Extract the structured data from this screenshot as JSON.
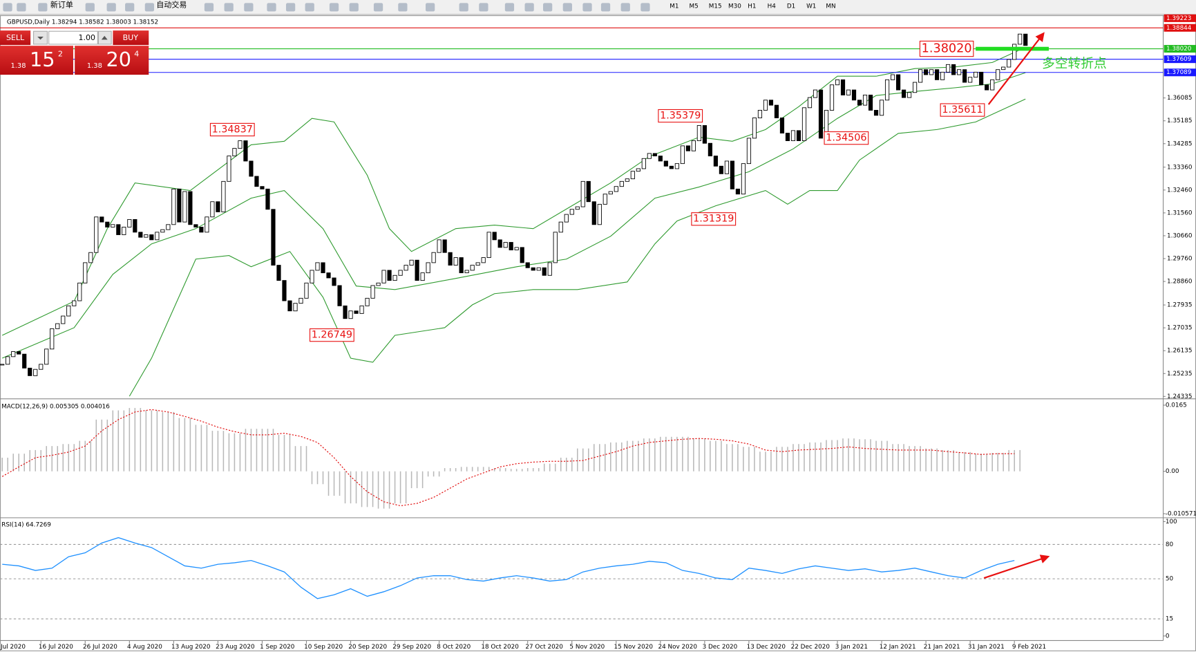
{
  "toolbar": {
    "new_order": "新订单",
    "auto_trading": "自动交易",
    "timeframes": [
      "M1",
      "M5",
      "M15",
      "M30",
      "H1",
      "H4",
      "D1",
      "W1",
      "MN"
    ]
  },
  "one_click": {
    "sell": "SELL",
    "buy": "BUY",
    "lot": "1.00",
    "sell_price": {
      "prefix": "1.38",
      "big": "15",
      "sup": "2"
    },
    "buy_price": {
      "prefix": "1.38",
      "big": "20",
      "sup": "4"
    }
  },
  "chart_data": [
    {
      "type": "candlestick",
      "title": "GBPUSD,Daily 1.38294 1.38582 1.38003 1.38152",
      "values": [
        1.256,
        1.259,
        1.261,
        1.26,
        1.2545,
        1.2515,
        1.254,
        1.256,
        1.262,
        1.27,
        1.272,
        1.275,
        1.279,
        1.281,
        1.288,
        1.296,
        1.3,
        1.314,
        1.312,
        1.31,
        1.311,
        1.307,
        1.31,
        1.313,
        1.308,
        1.306,
        1.307,
        1.305,
        1.308,
        1.309,
        1.311,
        1.325,
        1.312,
        1.324,
        1.311,
        1.31,
        1.308,
        1.314,
        1.32,
        1.316,
        1.328,
        1.338,
        1.341,
        1.344,
        1.336,
        1.33,
        1.326,
        1.325,
        1.317,
        1.295,
        1.289,
        1.281,
        1.277,
        1.28,
        1.282,
        1.288,
        1.293,
        1.296,
        1.292,
        1.29,
        1.287,
        1.279,
        1.274,
        1.277,
        1.276,
        1.279,
        1.282,
        1.287,
        1.288,
        1.293,
        1.289,
        1.291,
        1.293,
        1.295,
        1.297,
        1.289,
        1.292,
        1.296,
        1.3,
        1.305,
        1.3,
        1.295,
        1.298,
        1.292,
        1.293,
        1.295,
        1.296,
        1.298,
        1.308,
        1.305,
        1.302,
        1.304,
        1.301,
        1.302,
        1.296,
        1.294,
        1.293,
        1.294,
        1.291,
        1.296,
        1.308,
        1.312,
        1.315,
        1.317,
        1.318,
        1.328,
        1.32,
        1.311,
        1.319,
        1.323,
        1.324,
        1.326,
        1.328,
        1.329,
        1.332,
        1.333,
        1.337,
        1.339,
        1.338,
        1.336,
        1.334,
        1.333,
        1.335,
        1.342,
        1.34,
        1.344,
        1.35,
        1.343,
        1.338,
        1.334,
        1.331,
        1.336,
        1.325,
        1.323,
        1.335,
        1.345,
        1.353,
        1.356,
        1.36,
        1.358,
        1.353,
        1.347,
        1.344,
        1.348,
        1.344,
        1.357,
        1.361,
        1.364,
        1.345,
        1.356,
        1.366,
        1.368,
        1.362,
        1.364,
        1.36,
        1.358,
        1.362,
        1.356,
        1.354,
        1.36,
        1.368,
        1.37,
        1.364,
        1.361,
        1.363,
        1.367,
        1.372,
        1.37,
        1.372,
        1.368,
        1.371,
        1.374,
        1.37,
        1.372,
        1.367,
        1.369,
        1.371,
        1.366,
        1.364,
        1.368,
        1.372,
        1.373,
        1.376,
        1.382,
        1.386,
        1.3815
      ],
      "xlim": [
        -0.4,
        209.9
      ],
      "xticks": [
        {
          "value": -1,
          "label": "Jul 2020"
        },
        {
          "value": 7,
          "label": "16 Jul 2020"
        },
        {
          "value": 15,
          "label": "26 Jul 2020"
        },
        {
          "value": 23,
          "label": "4 Aug 2020"
        },
        {
          "value": 31,
          "label": "13 Aug 2020"
        },
        {
          "value": 39,
          "label": "23 Aug 2020"
        },
        {
          "value": 47,
          "label": "1 Sep 2020"
        },
        {
          "value": 55,
          "label": "10 Sep 2020"
        },
        {
          "value": 63,
          "label": "20 Sep 2020"
        },
        {
          "value": 71,
          "label": "29 Sep 2020"
        },
        {
          "value": 79,
          "label": "8 Oct 2020"
        },
        {
          "value": 87,
          "label": "18 Oct 2020"
        },
        {
          "value": 95,
          "label": "27 Oct 2020"
        },
        {
          "value": 103,
          "label": "5 Nov 2020"
        },
        {
          "value": 111,
          "label": "15 Nov 2020"
        },
        {
          "value": 119,
          "label": "24 Nov 2020"
        },
        {
          "value": 127,
          "label": "3 Dec 2020"
        },
        {
          "value": 135,
          "label": "13 Dec 2020"
        },
        {
          "value": 143,
          "label": "22 Dec 2020"
        },
        {
          "value": 151,
          "label": "3 Jan 2021"
        },
        {
          "value": 159,
          "label": "12 Jan 2021"
        },
        {
          "value": 167,
          "label": "21 Jan 2021"
        },
        {
          "value": 175,
          "label": "31 Jan 2021"
        },
        {
          "value": 183,
          "label": "9 Feb 2021"
        }
      ],
      "ylim": [
        1.2427,
        1.3928
      ],
      "yticks": [
        1.36085,
        1.35185,
        1.34285,
        {
          "value": 1.3336,
          "label": "1.33360"
        },
        {
          "value": 1.3246,
          "label": "1.32460"
        },
        {
          "value": 1.3156,
          "label": "1.31560"
        },
        {
          "value": 1.3066,
          "label": "1.30660"
        },
        {
          "value": 1.2976,
          "label": "1.29760"
        },
        {
          "value": 1.2886,
          "label": "1.28860"
        },
        1.27935,
        1.27035,
        1.26135,
        1.25235,
        1.24335
      ],
      "series": [
        {
          "color": "#2e9a2e",
          "x": [
            0,
            13,
            19,
            24,
            34,
            45,
            51,
            56,
            60,
            66,
            70,
            74,
            82,
            89,
            96,
            103,
            110,
            117,
            126,
            132,
            138,
            144,
            151,
            158,
            165,
            172,
            179,
            185
          ],
          "values": [
            1.2674,
            1.2808,
            1.3094,
            1.3274,
            1.3244,
            1.3424,
            1.3438,
            1.3528,
            1.3514,
            1.3304,
            1.3094,
            1.3004,
            1.3094,
            1.3108,
            1.3094,
            1.3184,
            1.3274,
            1.3378,
            1.3454,
            1.3438,
            1.3484,
            1.3574,
            1.3694,
            1.3694,
            1.3724,
            1.373,
            1.3748,
            1.3808
          ]
        },
        {
          "color": "#2e9a2e",
          "x": [
            0,
            13,
            20,
            27,
            35,
            45,
            51,
            58,
            64,
            71,
            82,
            93,
            102,
            110,
            118,
            126,
            135,
            143,
            151,
            158,
            165,
            172,
            179,
            185
          ],
          "values": [
            1.2584,
            1.2704,
            1.2914,
            1.3034,
            1.3094,
            1.3214,
            1.3244,
            1.3094,
            1.2868,
            1.2854,
            1.2898,
            1.2944,
            1.2974,
            1.3064,
            1.3214,
            1.3258,
            1.3318,
            1.3408,
            1.3528,
            1.3618,
            1.3634,
            1.3648,
            1.3664,
            1.3708
          ]
        },
        {
          "color": "#2e9a2e",
          "x": [
            23,
            27,
            35,
            41,
            45,
            52,
            58,
            63,
            67,
            71,
            80,
            85,
            89,
            96,
            104,
            113,
            118,
            122,
            129,
            138,
            142,
            146,
            151,
            155,
            162,
            169,
            176,
            185
          ],
          "values": [
            1.2434,
            1.2584,
            1.2974,
            1.2988,
            1.2944,
            1.3004,
            1.2824,
            1.2584,
            1.2568,
            1.2674,
            1.2704,
            1.2794,
            1.2838,
            1.2854,
            1.2854,
            1.2884,
            1.3034,
            1.3124,
            1.3184,
            1.3244,
            1.319,
            1.3244,
            1.3244,
            1.3364,
            1.3469,
            1.3484,
            1.3514,
            1.3604
          ]
        }
      ],
      "levels": [
        {
          "value": 1.39223,
          "color": "#e01010",
          "line": false
        },
        {
          "value": 1.38844,
          "color": "#e01010",
          "line": true
        },
        {
          "value": 1.3802,
          "label": "1.38020",
          "color": "#22bb22",
          "line": true
        },
        {
          "value": 1.37609,
          "color": "#1a1aff",
          "line": true
        },
        {
          "value": 1.37089,
          "color": "#1a1aff",
          "line": true
        }
      ],
      "annotations": [
        {
          "x": 46,
          "value": 1.34837
        },
        {
          "x": 64,
          "value": 1.26749
        },
        {
          "x": 127,
          "value": 1.35379
        },
        {
          "x": 133,
          "value": 1.31319
        },
        {
          "x": 157,
          "value": 1.34506
        },
        {
          "x": 178,
          "value": 1.35611
        },
        {
          "x": 176,
          "value": 1.3802,
          "label": "1.38020",
          "highlight": true
        }
      ],
      "note": {
        "text": "多空转折点",
        "color": "#33cc33"
      }
    },
    {
      "type": "macd",
      "title": "MACD(12,26,9) 0.005305 0.004016",
      "x": [
        0,
        3,
        6,
        9,
        12,
        15,
        18,
        21,
        24,
        27,
        30,
        33,
        36,
        39,
        42,
        45,
        48,
        51,
        54,
        57,
        60,
        63,
        66,
        69,
        72,
        75,
        78,
        81,
        84,
        87,
        90,
        93,
        96,
        99,
        102,
        105,
        108,
        111,
        114,
        117,
        120,
        123,
        126,
        129,
        132,
        135,
        138,
        141,
        144,
        147,
        150,
        153,
        156,
        159,
        162,
        165,
        168,
        171,
        174,
        177,
        180,
        183
      ],
      "histogram": {
        "color": "#b8b8b8",
        "values": [
          0.0034,
          0.0044,
          0.0053,
          0.0063,
          0.0068,
          0.0076,
          0.0129,
          0.0152,
          0.0158,
          0.0152,
          0.0148,
          0.0133,
          0.0116,
          0.0101,
          0.0095,
          0.0106,
          0.0106,
          0.0091,
          0.0063,
          -0.0032,
          -0.0061,
          -0.008,
          -0.0089,
          -0.0093,
          -0.008,
          -0.0042,
          -0.0013,
          0.0008,
          0.0011,
          0.0011,
          0.0008,
          0.0006,
          0.0008,
          0.0019,
          0.0034,
          0.0057,
          0.0068,
          0.0072,
          0.0076,
          0.0082,
          0.0086,
          0.0086,
          0.0082,
          0.0076,
          0.0068,
          0.0061,
          0.0049,
          0.0061,
          0.0068,
          0.0072,
          0.0078,
          0.0082,
          0.008,
          0.0076,
          0.0068,
          0.0063,
          0.0057,
          0.0053,
          0.0048,
          0.0044,
          0.0046,
          0.0053
        ]
      },
      "signal": {
        "color": "#e00000",
        "values": [
          -0.0013,
          0.0011,
          0.0034,
          0.004,
          0.0048,
          0.0063,
          0.0101,
          0.0129,
          0.0148,
          0.0154,
          0.0148,
          0.0137,
          0.0125,
          0.011,
          0.0099,
          0.0091,
          0.0091,
          0.0095,
          0.0087,
          0.0072,
          0.0034,
          -0.0013,
          -0.0051,
          -0.0076,
          -0.0086,
          -0.008,
          -0.0065,
          -0.0042,
          -0.0019,
          -0.0004,
          0.0011,
          0.0019,
          0.0023,
          0.0025,
          0.0025,
          0.0027,
          0.0038,
          0.0049,
          0.0063,
          0.0072,
          0.0076,
          0.008,
          0.0082,
          0.008,
          0.0076,
          0.0068,
          0.0053,
          0.0049,
          0.0053,
          0.0055,
          0.0057,
          0.0061,
          0.0057,
          0.0055,
          0.0053,
          0.0053,
          0.0053,
          0.0049,
          0.0046,
          0.0042,
          0.0044,
          0.0044
        ]
      },
      "ylim": [
        -0.0114,
        0.0177
      ],
      "yticks": [
        0.0165,
        {
          "value": 0,
          "label": "0.00"
        },
        -0.010571
      ]
    },
    {
      "type": "line",
      "title": "RSI(14) 64.7269",
      "x": [
        0,
        3,
        6,
        9,
        12,
        15,
        18,
        21,
        24,
        27,
        30,
        33,
        36,
        39,
        42,
        45,
        48,
        51,
        54,
        57,
        60,
        63,
        66,
        69,
        72,
        75,
        78,
        81,
        84,
        87,
        90,
        93,
        96,
        99,
        102,
        105,
        108,
        111,
        114,
        117,
        120,
        123,
        126,
        129,
        132,
        135,
        138,
        141,
        144,
        147,
        150,
        153,
        156,
        159,
        162,
        165,
        168,
        171,
        174,
        177,
        180,
        183
      ],
      "values": [
        62.7,
        61.3,
        57.3,
        59.3,
        69.3,
        72.7,
        81.3,
        86.0,
        81.3,
        77.3,
        69.3,
        61.3,
        59.3,
        62.7,
        64.0,
        66.0,
        61.3,
        56.0,
        42.7,
        32.7,
        36.0,
        41.3,
        34.7,
        38.7,
        44.0,
        50.7,
        52.7,
        52.7,
        49.3,
        48.0,
        50.7,
        52.7,
        50.7,
        48.0,
        49.3,
        56.0,
        59.3,
        61.3,
        62.7,
        65.3,
        64.0,
        57.3,
        54.7,
        50.7,
        49.3,
        59.3,
        57.3,
        54.7,
        58.7,
        61.3,
        59.3,
        57.3,
        58.7,
        56.0,
        57.3,
        59.3,
        56.0,
        52.7,
        50.7,
        57.3,
        62.7,
        66.0
      ],
      "color": "#1e90ff",
      "ylim": [
        -4,
        102
      ],
      "yticks": [
        100,
        80,
        50,
        15,
        0
      ]
    }
  ]
}
